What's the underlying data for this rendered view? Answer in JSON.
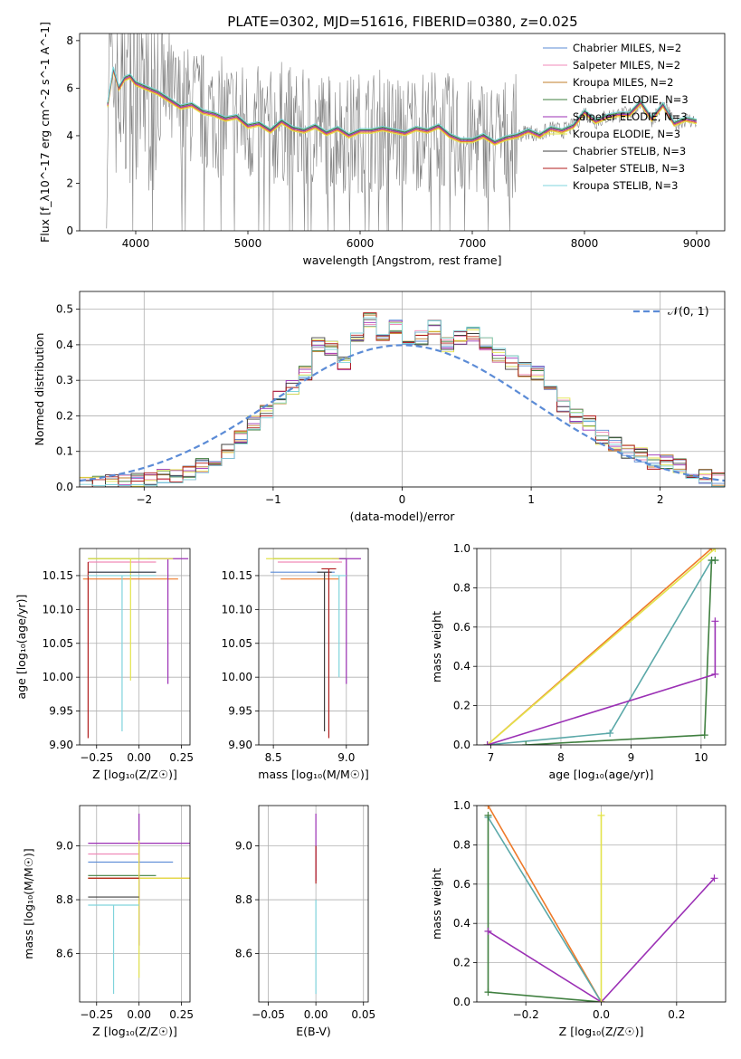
{
  "colors": {
    "chabrier_miles": "#5b8bd6",
    "salpeter_miles": "#f08ab8",
    "kroupa_miles": "#c07d2a",
    "chabrier_elodie": "#3f7f3f",
    "salpeter_elodie": "#9b30b5",
    "kroupa_elodie": "#e3e34a",
    "chabrier_stelib": "#404040",
    "salpeter_stelib": "#b01c1c",
    "kroupa_stelib": "#7fd4dc",
    "observed": "#808080",
    "orange": "#ee7a2a",
    "green_light": "#b6e06a",
    "teal": "#5aa8a8",
    "grid": "#b0b0b0"
  },
  "chart_data": [
    {
      "id": "spectrum",
      "type": "line",
      "title": "PLATE=0302, MJD=51616, FIBERID=0380, z=0.025",
      "xlabel": "wavelength [Angstrom, rest frame]",
      "ylabel": "Flux [f_λ10^-17 erg cm^-2 s^-1 A^-1]",
      "xlim": [
        3500,
        9250
      ],
      "ylim": [
        0,
        8.3
      ],
      "xticks": [
        "4000",
        "5000",
        "6000",
        "7000",
        "8000",
        "9000"
      ],
      "yticks": [
        "0",
        "2",
        "4",
        "6",
        "8"
      ],
      "legend_position": "top-right",
      "legend": [
        {
          "name": "Chabrier MILES, N_SSP=2",
          "key": "chabrier_miles"
        },
        {
          "name": "Salpeter MILES, N_SSP=2",
          "key": "salpeter_miles"
        },
        {
          "name": "Kroupa MILES, N_SSP=2",
          "key": "kroupa_miles"
        },
        {
          "name": "Chabrier ELODIE, N_SSP=3",
          "key": "chabrier_elodie"
        },
        {
          "name": "Salpeter ELODIE, N_SSP=3",
          "key": "salpeter_elodie"
        },
        {
          "name": "Kroupa ELODIE, N_SSP=3",
          "key": "kroupa_elodie"
        },
        {
          "name": "Chabrier STELIB, N_SSP=3",
          "key": "chabrier_stelib"
        },
        {
          "name": "Salpeter STELIB, N_SSP=3",
          "key": "salpeter_stelib"
        },
        {
          "name": "Kroupa STELIB, N_SSP=3",
          "key": "kroupa_stelib"
        }
      ],
      "model_x": [
        3750,
        3800,
        3850,
        3900,
        3950,
        4000,
        4100,
        4200,
        4300,
        4400,
        4500,
        4600,
        4700,
        4800,
        4900,
        5000,
        5100,
        5200,
        5300,
        5400,
        5500,
        5600,
        5700,
        5800,
        5900,
        6000,
        6100,
        6200,
        6300,
        6400,
        6500,
        6600,
        6700,
        6800,
        6900,
        7000,
        7100,
        7200,
        7300,
        7400,
        7500,
        7600,
        7700,
        7800,
        7900,
        8000,
        8100,
        8200,
        8300,
        8400,
        8500,
        8600,
        8700,
        8800,
        8900,
        9000
      ],
      "model_y": [
        5.3,
        6.8,
        6.0,
        6.4,
        6.5,
        6.2,
        6.0,
        5.8,
        5.5,
        5.2,
        5.3,
        5.0,
        4.9,
        4.7,
        4.8,
        4.4,
        4.5,
        4.2,
        4.6,
        4.3,
        4.2,
        4.4,
        4.1,
        4.3,
        4.0,
        4.2,
        4.2,
        4.3,
        4.2,
        4.1,
        4.3,
        4.2,
        4.4,
        4.0,
        3.8,
        3.8,
        4.0,
        3.7,
        3.9,
        4.0,
        4.2,
        4.0,
        4.3,
        4.2,
        4.4,
        5.0,
        4.6,
        4.8,
        4.9,
        4.9,
        5.4,
        4.7,
        5.3,
        4.5,
        4.7,
        4.6
      ]
    },
    {
      "id": "residuals",
      "type": "line",
      "xlabel": "(data-model)/error",
      "ylabel": "Normed distribution",
      "xlim": [
        -2.5,
        2.5
      ],
      "ylim": [
        0,
        0.55
      ],
      "xticks": [
        "−2",
        "−1",
        "0",
        "1",
        "2"
      ],
      "yticks": [
        "0.0",
        "0.1",
        "0.2",
        "0.3",
        "0.4",
        "0.5"
      ],
      "legend": [
        {
          "name": "𝒩(0, 1)"
        }
      ],
      "legend_position": "top-right",
      "hist_x": [
        -2.5,
        -2.4,
        -2.3,
        -2.2,
        -2.1,
        -2.0,
        -1.9,
        -1.8,
        -1.7,
        -1.6,
        -1.5,
        -1.4,
        -1.3,
        -1.2,
        -1.1,
        -1.0,
        -0.9,
        -0.8,
        -0.7,
        -0.6,
        -0.5,
        -0.4,
        -0.3,
        -0.2,
        -0.1,
        0.0,
        0.1,
        0.2,
        0.3,
        0.4,
        0.5,
        0.6,
        0.7,
        0.8,
        0.9,
        1.0,
        1.1,
        1.2,
        1.3,
        1.4,
        1.5,
        1.6,
        1.7,
        1.8,
        1.9,
        2.0,
        2.1,
        2.2,
        2.3,
        2.4
      ],
      "hist_y": [
        0.01,
        0.01,
        0.015,
        0.015,
        0.02,
        0.02,
        0.03,
        0.03,
        0.04,
        0.06,
        0.08,
        0.1,
        0.14,
        0.18,
        0.21,
        0.25,
        0.28,
        0.32,
        0.4,
        0.39,
        0.35,
        0.43,
        0.47,
        0.42,
        0.45,
        0.39,
        0.42,
        0.45,
        0.4,
        0.42,
        0.43,
        0.4,
        0.37,
        0.35,
        0.33,
        0.32,
        0.27,
        0.23,
        0.2,
        0.18,
        0.14,
        0.12,
        0.1,
        0.09,
        0.07,
        0.07,
        0.06,
        0.04,
        0.03,
        0.02
      ]
    },
    {
      "id": "age-vs-Z",
      "type": "scatter",
      "xlabel": "Z [log10(Z/Z☉)]",
      "ylabel": "age  [log10(age/yr)]",
      "xlim": [
        -0.35,
        0.3
      ],
      "ylim": [
        9.9,
        10.19
      ],
      "xticks": [
        "−0.25",
        "0.00",
        "0.25"
      ],
      "yticks": [
        "9.90",
        "9.95",
        "10.00",
        "10.05",
        "10.10",
        "10.15"
      ],
      "points": [
        {
          "key": "chabrier_miles",
          "x": -0.1,
          "y": 10.155,
          "xerr": 0.2,
          "yerr_low": 10.155,
          "yerr_high": 10.155
        },
        {
          "key": "salpeter_miles",
          "x": -0.1,
          "y": 10.17,
          "xerr": 0.2,
          "yerr_low": 10.17,
          "yerr_high": 10.17
        },
        {
          "key": "orange",
          "x": -0.05,
          "y": 10.145,
          "xerr": 0.28,
          "yerr_low": 10.145,
          "yerr_high": 10.145
        },
        {
          "key": "chabrier_elodie",
          "x": -0.05,
          "y": 10.175,
          "xerr": 0.25,
          "yerr_low": 10.175,
          "yerr_high": 10.175
        },
        {
          "key": "salpeter_elodie",
          "x": 0.17,
          "y": 10.175,
          "xerr": 0.12,
          "yerr_low": 9.99,
          "yerr_high": 10.175
        },
        {
          "key": "kroupa_elodie",
          "x": -0.05,
          "y": 10.175,
          "xerr": 0.25,
          "yerr_low": 9.995,
          "yerr_high": 10.175
        },
        {
          "key": "chabrier_stelib",
          "x": -0.1,
          "y": 10.155,
          "xerr": 0.2,
          "yerr_low": 10.155,
          "yerr_high": 10.155
        },
        {
          "key": "salpeter_stelib",
          "x": -0.3,
          "y": 10.17,
          "xerr": 0.0,
          "yerr_low": 9.91,
          "yerr_high": 10.17
        },
        {
          "key": "kroupa_stelib",
          "x": -0.1,
          "y": 10.15,
          "xerr": 0.2,
          "yerr_low": 9.92,
          "yerr_high": 10.15
        }
      ]
    },
    {
      "id": "age-vs-mass",
      "type": "scatter",
      "xlabel": "mass [log10(M/M☉)]",
      "ylabel": "",
      "xlim": [
        8.4,
        9.15
      ],
      "ylim": [
        9.9,
        10.19
      ],
      "xticks": [
        "8.5",
        "9.0"
      ],
      "yticks": [
        "9.90",
        "9.95",
        "10.00",
        "10.05",
        "10.10",
        "10.15"
      ],
      "points": [
        {
          "key": "chabrier_miles",
          "x": 8.7,
          "y": 10.155,
          "xerr": 0.22,
          "yerr_low": 10.155,
          "yerr_high": 10.155
        },
        {
          "key": "salpeter_miles",
          "x": 8.75,
          "y": 10.17,
          "xerr": 0.22,
          "yerr_low": 10.17,
          "yerr_high": 10.17
        },
        {
          "key": "orange",
          "x": 8.75,
          "y": 10.145,
          "xerr": 0.2,
          "yerr_low": 10.145,
          "yerr_high": 10.145
        },
        {
          "key": "chabrier_elodie",
          "x": 8.75,
          "y": 10.175,
          "xerr": 0.25,
          "yerr_low": 10.175,
          "yerr_high": 10.175
        },
        {
          "key": "salpeter_elodie",
          "x": 9.0,
          "y": 10.175,
          "xerr": 0.1,
          "yerr_low": 9.99,
          "yerr_high": 10.175
        },
        {
          "key": "kroupa_elodie",
          "x": 8.7,
          "y": 10.175,
          "xerr": 0.25,
          "yerr_low": 10.175,
          "yerr_high": 10.175
        },
        {
          "key": "chabrier_stelib",
          "x": 8.85,
          "y": 10.155,
          "xerr": 0.05,
          "yerr_low": 9.92,
          "yerr_high": 10.155
        },
        {
          "key": "salpeter_stelib",
          "x": 8.88,
          "y": 10.16,
          "xerr": 0.05,
          "yerr_low": 9.91,
          "yerr_high": 10.16
        },
        {
          "key": "kroupa_stelib",
          "x": 8.95,
          "y": 10.15,
          "xerr": 0.05,
          "yerr_low": 10.0,
          "yerr_high": 10.15
        }
      ]
    },
    {
      "id": "weight-vs-age",
      "type": "line",
      "xlabel": "age  [log10(age/yr)]",
      "ylabel": "mass weight",
      "xlim": [
        6.8,
        10.35
      ],
      "ylim": [
        0,
        1.0
      ],
      "xticks": [
        "7",
        "8",
        "9",
        "10"
      ],
      "yticks": [
        "0.0",
        "0.2",
        "0.4",
        "0.6",
        "0.8",
        "1.0"
      ],
      "series": [
        {
          "key": "orange",
          "x": [
            6.95,
            10.15
          ],
          "y": [
            0.0,
            1.0
          ]
        },
        {
          "key": "kroupa_elodie",
          "x": [
            6.95,
            10.2
          ],
          "y": [
            0.0,
            1.0
          ]
        },
        {
          "key": "teal",
          "x": [
            6.95,
            8.7,
            10.15,
            10.2
          ],
          "y": [
            0.0,
            0.06,
            0.94,
            0.94
          ]
        },
        {
          "key": "chabrier_elodie",
          "x": [
            7.5,
            10.05,
            10.15,
            10.2
          ],
          "y": [
            0.0,
            0.05,
            0.94,
            0.94
          ]
        },
        {
          "key": "salpeter_elodie",
          "x": [
            6.95,
            10.2,
            10.2
          ],
          "y": [
            0.0,
            0.36,
            0.63
          ]
        }
      ]
    },
    {
      "id": "mass-vs-Z",
      "type": "scatter",
      "xlabel": "Z [log10(Z/Z☉)]",
      "ylabel": "mass [log10(M/M☉)]",
      "xlim": [
        -0.35,
        0.3
      ],
      "ylim": [
        8.42,
        9.15
      ],
      "xticks": [
        "−0.25",
        "0.00",
        "0.25"
      ],
      "yticks": [
        "8.6",
        "8.8",
        "9.0"
      ],
      "points": [
        {
          "key": "chabrier_miles",
          "x": -0.05,
          "y": 8.94,
          "xerr": 0.25,
          "yerr_low": 8.94,
          "yerr_high": 8.94
        },
        {
          "key": "salpeter_miles",
          "x": -0.15,
          "y": 8.97,
          "xerr": 0.15,
          "yerr_low": 8.97,
          "yerr_high": 8.97
        },
        {
          "key": "orange",
          "x": 0.0,
          "y": 8.88,
          "xerr": 0.3,
          "yerr_low": 8.88,
          "yerr_high": 8.88
        },
        {
          "key": "chabrier_elodie",
          "x": -0.1,
          "y": 8.89,
          "xerr": 0.2,
          "yerr_low": 8.89,
          "yerr_high": 8.89
        },
        {
          "key": "salpeter_elodie",
          "x": 0.0,
          "y": 9.01,
          "xerr": 0.3,
          "yerr_low": 8.63,
          "yerr_high": 9.12
        },
        {
          "key": "kroupa_elodie",
          "x": 0.0,
          "y": 8.88,
          "xerr": 0.3,
          "yerr_low": 8.51,
          "yerr_high": 9.02
        },
        {
          "key": "chabrier_stelib",
          "x": -0.15,
          "y": 8.81,
          "xerr": 0.15,
          "yerr_low": 8.81,
          "yerr_high": 8.81
        },
        {
          "key": "salpeter_stelib",
          "x": -0.15,
          "y": 8.88,
          "xerr": 0.15,
          "yerr_low": 8.88,
          "yerr_high": 8.88
        },
        {
          "key": "kroupa_stelib",
          "x": -0.15,
          "y": 8.78,
          "xerr": 0.15,
          "yerr_low": 8.45,
          "yerr_high": 8.78
        }
      ]
    },
    {
      "id": "mass-vs-ebv",
      "type": "scatter",
      "xlabel": "E(B-V)",
      "ylabel": "",
      "xlim": [
        -0.06,
        0.055
      ],
      "ylim": [
        8.42,
        9.15
      ],
      "xticks": [
        "−0.05",
        "0.00",
        "0.05"
      ],
      "yticks": [
        "8.6",
        "8.8",
        "9.0"
      ],
      "points": [
        {
          "key": "salpeter_elodie",
          "x": 0.0,
          "y": 9.0,
          "yerr_low": 8.87,
          "yerr_high": 9.12
        },
        {
          "key": "salpeter_stelib",
          "x": 0.0,
          "y": 8.9,
          "yerr_low": 8.86,
          "yerr_high": 9.0
        },
        {
          "key": "kroupa_stelib",
          "x": 0.0,
          "y": 8.78,
          "yerr_low": 8.45,
          "yerr_high": 8.8
        }
      ]
    },
    {
      "id": "weight-vs-Z",
      "type": "line",
      "xlabel": "Z [log10(Z/Z☉)]",
      "ylabel": "mass weight",
      "xlim": [
        -0.33,
        0.33
      ],
      "ylim": [
        0,
        1.0
      ],
      "xticks": [
        "−0.2",
        "0.0",
        "0.2"
      ],
      "yticks": [
        "0.0",
        "0.2",
        "0.4",
        "0.6",
        "0.8",
        "1.0"
      ],
      "series": [
        {
          "key": "orange",
          "x": [
            -0.3,
            0.0
          ],
          "y": [
            1.0,
            0.0
          ]
        },
        {
          "key": "teal",
          "x": [
            -0.3,
            0.0
          ],
          "y": [
            0.94,
            0.0
          ]
        },
        {
          "key": "chabrier_elodie",
          "x": [
            -0.3,
            -0.3,
            0.0
          ],
          "y": [
            0.95,
            0.05,
            0.0
          ]
        },
        {
          "key": "salpeter_elodie",
          "x": [
            -0.3,
            0.0,
            0.3
          ],
          "y": [
            0.36,
            0.0,
            0.63
          ]
        },
        {
          "key": "kroupa_elodie",
          "x": [
            0.0,
            0.0
          ],
          "y": [
            0.0,
            0.95
          ]
        }
      ]
    }
  ]
}
